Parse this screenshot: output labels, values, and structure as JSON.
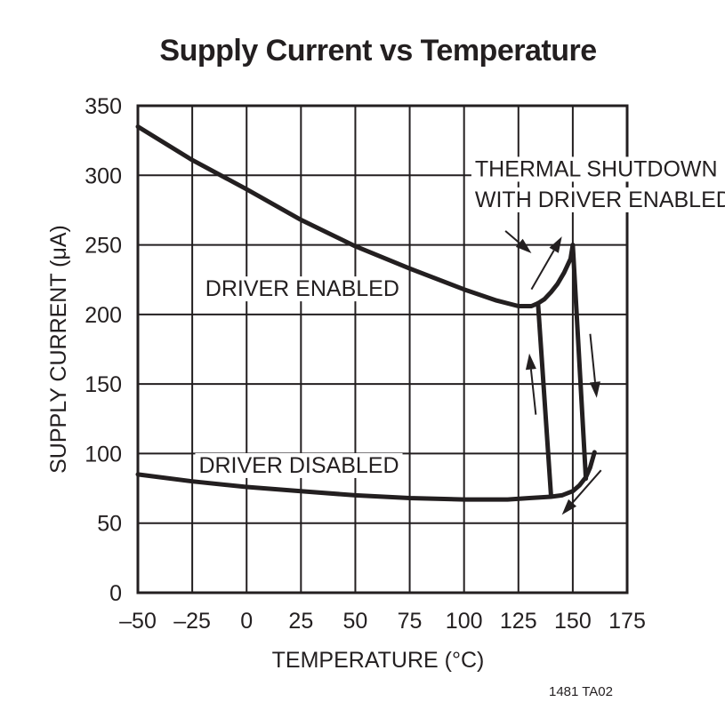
{
  "chart_data": {
    "type": "line",
    "title": "Supply Current vs Temperature",
    "xlabel": "TEMPERATURE (°C)",
    "ylabel": "SUPPLY CURRENT (μA)",
    "xlim": [
      -50,
      175
    ],
    "ylim": [
      0,
      350
    ],
    "x_ticks": [
      -50,
      -25,
      0,
      25,
      50,
      75,
      100,
      125,
      150,
      175
    ],
    "x_tick_labels": [
      "–50",
      "–25",
      "0",
      "25",
      "50",
      "75",
      "100",
      "125",
      "150",
      "175"
    ],
    "y_ticks": [
      0,
      50,
      100,
      150,
      200,
      250,
      300,
      350
    ],
    "y_tick_labels": [
      "0",
      "50",
      "100",
      "150",
      "200",
      "250",
      "300",
      "350"
    ],
    "grid": true,
    "series": [
      {
        "name": "DRIVER ENABLED",
        "x": [
          -50,
          -25,
          0,
          25,
          50,
          75,
          100,
          115,
          125,
          131,
          134,
          137,
          140,
          143,
          146,
          149,
          150
        ],
        "y": [
          335,
          311,
          290,
          268,
          249,
          233,
          218,
          210,
          206,
          206,
          208,
          211,
          216,
          222,
          230,
          240,
          250
        ]
      },
      {
        "name": "DRIVER DISABLED",
        "x": [
          -50,
          -25,
          0,
          25,
          50,
          75,
          100,
          120,
          130,
          140,
          145,
          150,
          153,
          156,
          158,
          160
        ],
        "y": [
          85,
          80,
          76,
          73,
          70,
          68,
          67,
          67,
          68,
          69,
          70,
          73,
          77,
          83,
          90,
          101
        ]
      },
      {
        "name": "THERMAL SHUTDOWN WITH DRIVER ENABLED",
        "x": [
          150,
          156
        ],
        "y": [
          250,
          82
        ]
      },
      {
        "name": "",
        "x": [
          134,
          140
        ],
        "y": [
          208,
          70
        ]
      }
    ],
    "annotations": [
      {
        "text": "DRIVER ENABLED",
        "x": -19,
        "y": 219
      },
      {
        "text": "DRIVER DISABLED",
        "x": -22,
        "y": 92
      },
      {
        "text": "THERMAL SHUTDOWN",
        "x": 105,
        "y": 305
      },
      {
        "text": "WITH DRIVER ENABLED",
        "x": 105,
        "y": 283
      }
    ],
    "arrows": [
      {
        "from": [
          119,
          260
        ],
        "to": [
          131,
          244
        ]
      },
      {
        "from": [
          131,
          218
        ],
        "to": [
          145,
          256
        ]
      },
      {
        "from": [
          133,
          128
        ],
        "to": [
          130,
          172
        ]
      },
      {
        "from": [
          158,
          186
        ],
        "to": [
          161,
          140
        ]
      },
      {
        "from": [
          163,
          88
        ],
        "to": [
          145,
          56
        ]
      }
    ]
  },
  "figure_ref": "1481 TA02"
}
